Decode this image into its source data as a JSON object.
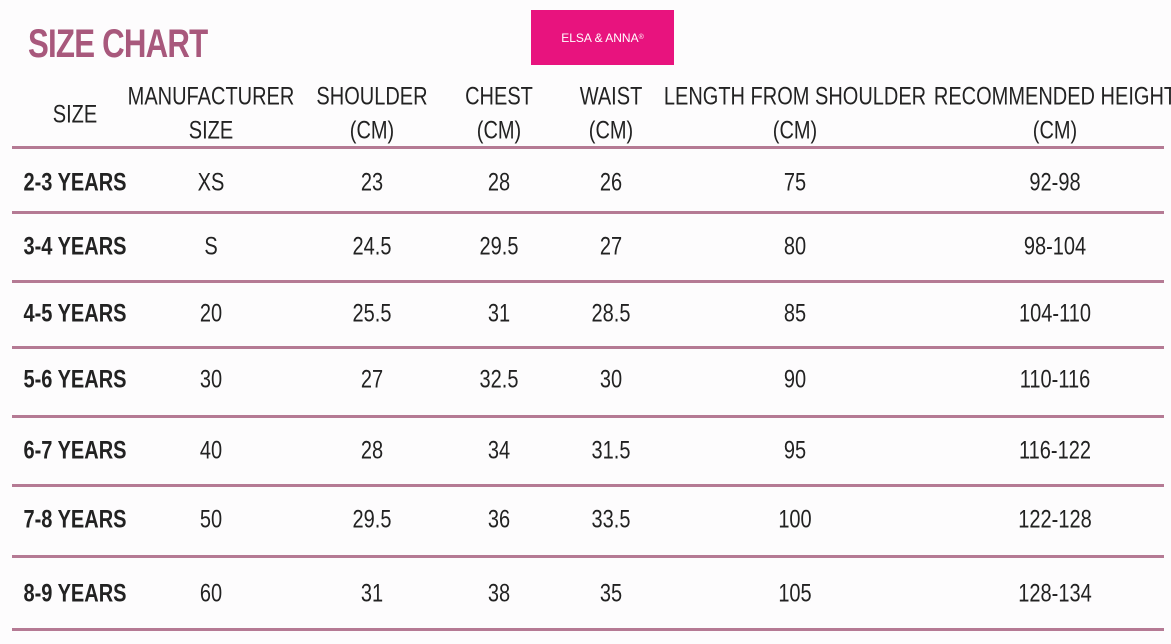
{
  "title": "SIZE CHART",
  "logo": {
    "text": "ELSA & ANNA",
    "mark": "®"
  },
  "table": {
    "headers": [
      [
        "SIZE"
      ],
      [
        "MANUFACTURER",
        "SIZE"
      ],
      [
        "SHOULDER",
        "(CM)"
      ],
      [
        "CHEST",
        "(CM)"
      ],
      [
        "WAIST",
        "(CM)"
      ],
      [
        "LENGTH FROM SHOULDER",
        "(CM)"
      ],
      [
        "RECOMMENDED HEIGHT",
        "(CM)"
      ]
    ],
    "rows": [
      [
        "2-3 YEARS",
        "XS",
        "23",
        "28",
        "26",
        "75",
        "92-98"
      ],
      [
        "3-4 YEARS",
        "S",
        "24.5",
        "29.5",
        "27",
        "80",
        "98-104"
      ],
      [
        "4-5 YEARS",
        "20",
        "25.5",
        "31",
        "28.5",
        "85",
        "104-110"
      ],
      [
        "5-6 YEARS",
        "30",
        "27",
        "32.5",
        "30",
        "90",
        "110-116"
      ],
      [
        "6-7 YEARS",
        "40",
        "28",
        "34",
        "31.5",
        "95",
        "116-122"
      ],
      [
        "7-8 YEARS",
        "50",
        "29.5",
        "36",
        "33.5",
        "100",
        "122-128"
      ],
      [
        "8-9 YEARS",
        "60",
        "31",
        "38",
        "35",
        "105",
        "128-134"
      ]
    ]
  }
}
